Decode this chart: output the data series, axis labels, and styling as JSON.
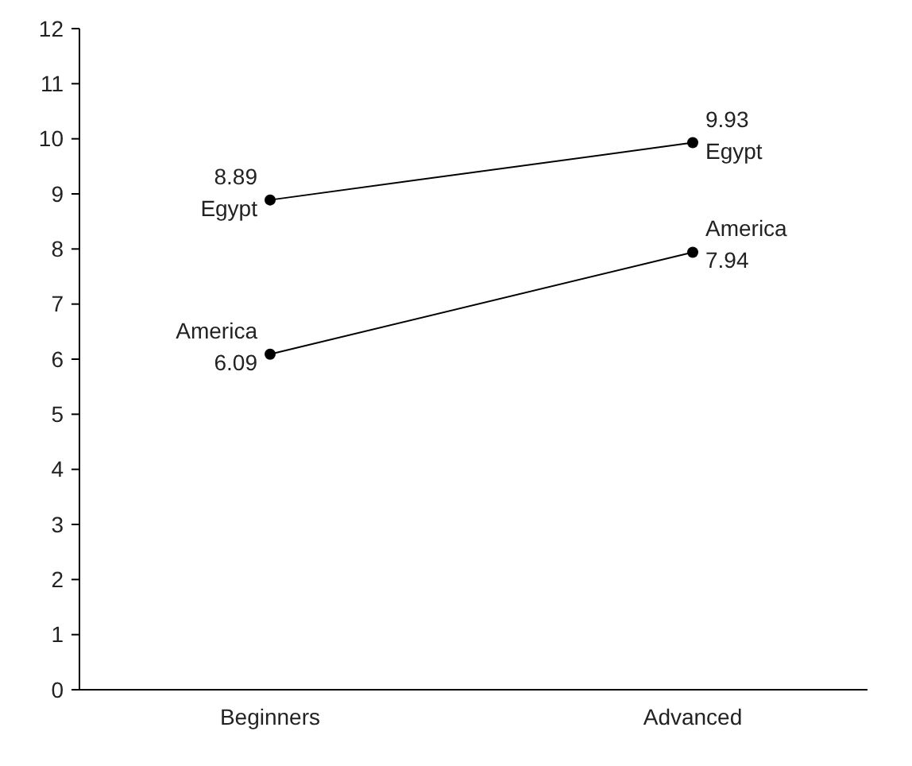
{
  "chart_data": {
    "type": "line",
    "categories": [
      "Beginners",
      "Advanced"
    ],
    "series": [
      {
        "name": "Egypt",
        "color": "#000000",
        "values": [
          8.89,
          9.93
        ]
      },
      {
        "name": "America",
        "color": "#000000",
        "values": [
          6.09,
          7.94
        ]
      }
    ],
    "ylim": [
      0,
      12
    ],
    "yticks": [
      0,
      1,
      2,
      3,
      4,
      5,
      6,
      7,
      8,
      9,
      10,
      11,
      12
    ],
    "data_labels": true,
    "marker": "circle",
    "line_style": "solid",
    "grid": false
  }
}
